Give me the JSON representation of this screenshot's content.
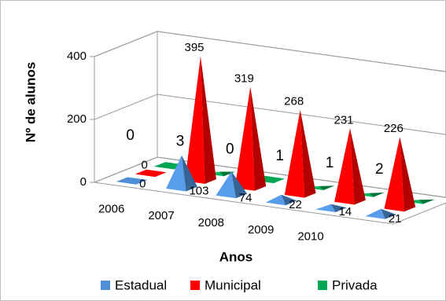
{
  "chart_data": {
    "type": "pyramid3d",
    "x_label": "Anos",
    "y_label": "Nº de alunos",
    "categories": [
      "2006",
      "2007",
      "2008",
      "2009",
      "2010",
      null
    ],
    "series": [
      {
        "name": "Estadual",
        "color": "#4f8fd6",
        "values": [
          0,
          103,
          74,
          22,
          14,
          21
        ]
      },
      {
        "name": "Municipal",
        "color": "#ff0000",
        "values": [
          0,
          395,
          319,
          268,
          231,
          226
        ]
      },
      {
        "name": "Privada",
        "color": "#00a651",
        "values": [
          0,
          3,
          0,
          1,
          1,
          2
        ]
      }
    ],
    "ylim": [
      0,
      400
    ],
    "yticks": [
      0,
      200,
      400
    ],
    "grid": true,
    "legend": "bottom"
  }
}
